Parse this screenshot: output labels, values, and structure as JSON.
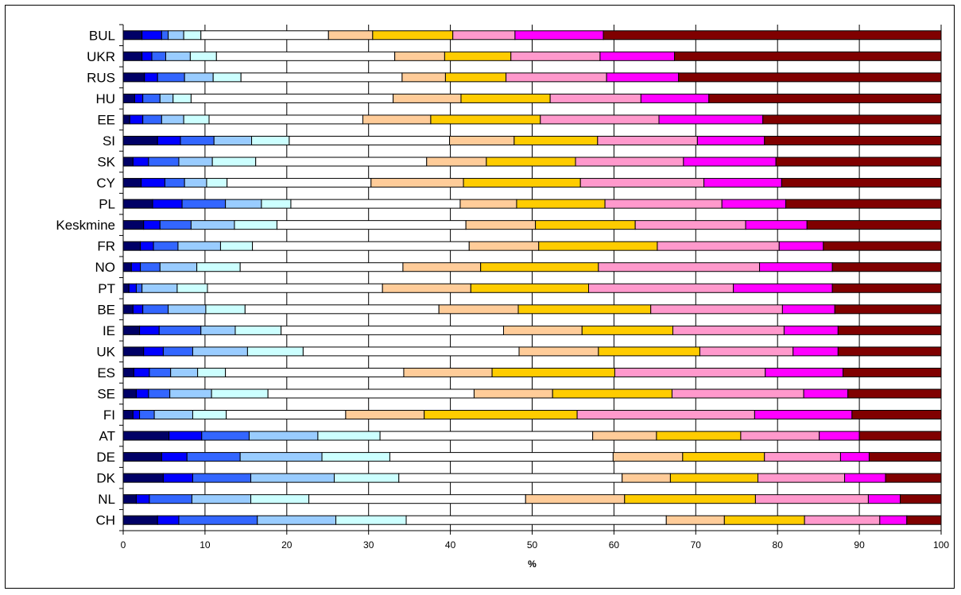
{
  "chart_data": {
    "type": "bar",
    "orientation": "horizontal",
    "stacked": true,
    "xlabel": "%",
    "xlim": [
      0,
      100
    ],
    "x_ticks": [
      "0",
      "10",
      "20",
      "30",
      "40",
      "50",
      "60",
      "70",
      "80",
      "90",
      "100"
    ],
    "grid": "vertical",
    "legend": "none",
    "categories": [
      "BUL",
      "UKR",
      "RUS",
      "HU",
      "EE",
      "SI",
      "SK",
      "CY",
      "PL",
      "Keskmine",
      "FR",
      "NO",
      "PT",
      "BE",
      "IE",
      "UK",
      "ES",
      "SE",
      "FI",
      "AT",
      "DE",
      "DK",
      "NL",
      "CH"
    ],
    "segment_colors": [
      "#000066",
      "#0000ff",
      "#3366ff",
      "#99ccff",
      "#ccffff",
      "#ffffff",
      "#ffcc99",
      "#ffcc00",
      "#ff99cc",
      "#ff00ff",
      "#800000"
    ],
    "rows": [
      [
        2.3,
        2.4,
        0.8,
        1.9,
        2.1,
        15.6,
        5.4,
        9.8,
        7.6,
        10.8,
        41.3
      ],
      [
        2.3,
        1.2,
        1.7,
        3.0,
        3.2,
        21.8,
        6.1,
        8.1,
        10.9,
        9.1,
        32.6
      ],
      [
        2.6,
        1.6,
        3.3,
        3.5,
        3.4,
        19.7,
        5.3,
        7.4,
        12.3,
        8.8,
        32.1
      ],
      [
        1.4,
        1.0,
        2.1,
        1.6,
        2.2,
        24.7,
        8.3,
        10.9,
        11.1,
        8.3,
        28.4
      ],
      [
        0.8,
        1.6,
        2.3,
        2.7,
        3.1,
        18.8,
        8.3,
        13.4,
        14.5,
        12.7,
        21.8
      ],
      [
        4.2,
        2.8,
        4.1,
        4.6,
        4.6,
        19.6,
        7.9,
        10.2,
        12.2,
        8.2,
        21.6
      ],
      [
        1.2,
        1.9,
        3.7,
        4.1,
        5.3,
        20.9,
        7.3,
        10.9,
        13.2,
        11.3,
        20.2
      ],
      [
        2.2,
        2.9,
        2.4,
        2.7,
        2.5,
        17.6,
        11.3,
        14.3,
        15.1,
        9.5,
        19.5
      ],
      [
        3.6,
        3.6,
        5.3,
        4.4,
        3.6,
        20.7,
        6.9,
        10.8,
        14.3,
        7.8,
        19.0
      ],
      [
        2.5,
        2.0,
        3.8,
        5.3,
        5.2,
        23.1,
        8.5,
        12.2,
        13.5,
        7.5,
        16.4
      ],
      [
        2.1,
        1.6,
        3.0,
        5.2,
        3.9,
        26.5,
        8.5,
        14.5,
        14.9,
        5.4,
        14.4
      ],
      [
        1.0,
        1.1,
        2.4,
        4.5,
        5.3,
        19.9,
        9.5,
        14.4,
        19.7,
        8.9,
        13.3
      ],
      [
        0.7,
        0.9,
        0.7,
        4.3,
        3.7,
        21.4,
        10.8,
        14.4,
        17.7,
        12.1,
        13.3
      ],
      [
        1.2,
        1.2,
        3.1,
        4.6,
        4.8,
        23.7,
        9.7,
        16.2,
        16.1,
        6.4,
        13.0
      ],
      [
        2.0,
        2.4,
        5.1,
        4.2,
        5.6,
        27.2,
        9.6,
        11.1,
        13.6,
        6.6,
        12.6
      ],
      [
        2.5,
        2.4,
        3.6,
        6.7,
        6.8,
        26.4,
        9.7,
        12.4,
        11.4,
        5.5,
        12.6
      ],
      [
        1.3,
        1.9,
        2.6,
        3.3,
        3.4,
        21.8,
        10.8,
        15.0,
        18.4,
        9.5,
        12.0
      ],
      [
        1.6,
        1.5,
        2.6,
        5.1,
        6.9,
        25.2,
        9.6,
        14.6,
        16.1,
        5.4,
        11.4
      ],
      [
        1.2,
        0.8,
        1.8,
        4.7,
        4.1,
        14.6,
        9.6,
        18.7,
        21.7,
        11.9,
        10.9
      ],
      [
        5.6,
        4.0,
        5.8,
        8.4,
        7.6,
        26.0,
        7.8,
        10.3,
        9.6,
        4.9,
        10.0
      ],
      [
        4.7,
        3.1,
        6.5,
        10.0,
        8.3,
        27.3,
        8.5,
        10.0,
        9.3,
        3.5,
        8.8
      ],
      [
        4.9,
        3.6,
        7.1,
        10.2,
        7.9,
        27.3,
        5.9,
        10.7,
        10.6,
        5.0,
        6.8
      ],
      [
        1.6,
        1.6,
        5.2,
        7.2,
        7.1,
        26.5,
        12.1,
        16.0,
        13.8,
        3.9,
        5.0
      ],
      [
        4.2,
        2.6,
        9.6,
        9.6,
        8.6,
        31.8,
        7.1,
        9.8,
        9.2,
        3.3,
        4.2
      ]
    ]
  }
}
